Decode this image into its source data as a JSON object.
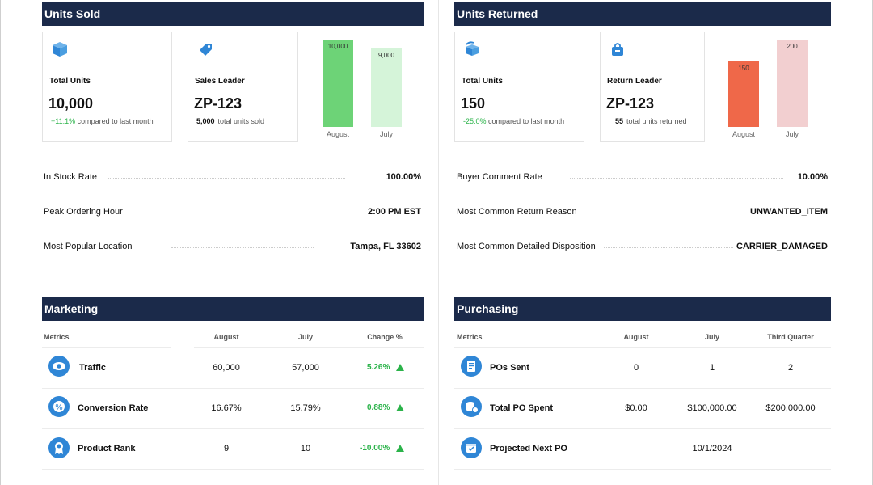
{
  "units_sold": {
    "title": "Units Sold",
    "total_units": {
      "label": "Total Units",
      "value": "10,000",
      "delta": "+11.1%",
      "delta_text": "compared to last month"
    },
    "sales_leader": {
      "label": "Sales Leader",
      "value": "ZP-123",
      "count": "5,000",
      "count_text": "total units sold"
    },
    "chart_data": {
      "type": "bar",
      "categories": [
        "August",
        "July"
      ],
      "values": [
        10000,
        9000
      ],
      "value_labels": [
        "10,000",
        "9,000"
      ],
      "colors": [
        "#6dd377",
        "#d5f4d9"
      ],
      "ylim": [
        0,
        10000
      ]
    },
    "stats": [
      {
        "label": "In Stock Rate",
        "value": "100.00%"
      },
      {
        "label": "Peak Ordering Hour",
        "value": "2:00 PM EST"
      },
      {
        "label": "Most Popular Location",
        "value": "Tampa, FL 33602"
      }
    ]
  },
  "units_returned": {
    "title": "Units Returned",
    "total_units": {
      "label": "Total Units",
      "value": "150",
      "delta": "-25.0%",
      "delta_text": "compared to last month"
    },
    "return_leader": {
      "label": "Return Leader",
      "value": "ZP-123",
      "count": "55",
      "count_text": "total units returned"
    },
    "chart_data": {
      "type": "bar",
      "categories": [
        "August",
        "July"
      ],
      "values": [
        150,
        200
      ],
      "value_labels": [
        "150",
        "200"
      ],
      "colors": [
        "#ef6849",
        "#f2cfd0"
      ],
      "ylim": [
        0,
        200
      ]
    },
    "stats": [
      {
        "label": "Buyer Comment Rate",
        "value": "10.00%"
      },
      {
        "label": "Most Common Return Reason",
        "value": "UNWANTED_ITEM"
      },
      {
        "label": "Most Common Detailed Disposition",
        "value": "CARRIER_DAMAGED"
      }
    ]
  },
  "marketing": {
    "title": "Marketing",
    "columns": [
      "Metrics",
      "August",
      "July",
      "Change %"
    ],
    "rows": [
      {
        "icon": "eye-icon",
        "name": "Traffic",
        "august": "60,000",
        "july": "57,000",
        "change": "5.26%"
      },
      {
        "icon": "percent-badge-icon",
        "name": "Conversion Rate",
        "august": "16.67%",
        "july": "15.79%",
        "change": "0.88%"
      },
      {
        "icon": "award-ribbon-icon",
        "name": "Product Rank",
        "august": "9",
        "july": "10",
        "change": "-10.00%"
      }
    ]
  },
  "purchasing": {
    "title": "Purchasing",
    "columns": [
      "Metrics",
      "August",
      "July",
      "Third Quarter"
    ],
    "rows": [
      {
        "icon": "document-icon",
        "name": "POs Sent",
        "august": "0",
        "july": "1",
        "third_quarter": "2"
      },
      {
        "icon": "coins-icon",
        "name": "Total PO Spent",
        "august": "$0.00",
        "july": "$100,000.00",
        "third_quarter": "$200,000.00"
      },
      {
        "icon": "calendar-icon",
        "name": "Projected Next PO",
        "august": "",
        "july": "10/1/2024",
        "third_quarter": ""
      }
    ]
  },
  "colors": {
    "header": "#1b2a4a",
    "accent_blue": "#2f86d6",
    "positive": "#2bb34a"
  }
}
